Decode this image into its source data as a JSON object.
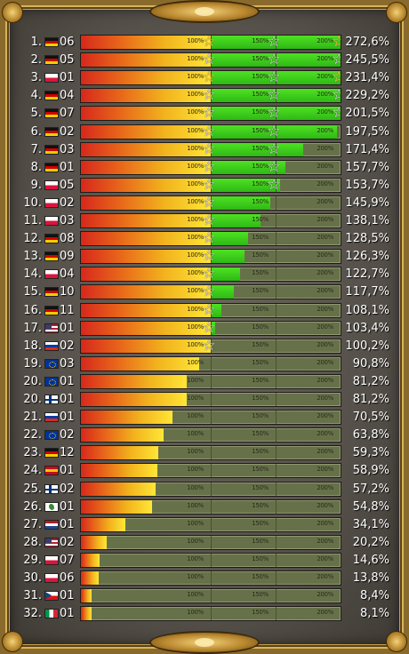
{
  "gauge_labels": [
    "100%",
    "150%",
    "200%"
  ],
  "rows": [
    {
      "rank": "1.",
      "flag": "germany",
      "code": "06",
      "value": 272.6,
      "pct": "272,6%",
      "star_gold": true
    },
    {
      "rank": "2.",
      "flag": "germany",
      "code": "05",
      "value": 245.5,
      "pct": "245,5%",
      "star_gold": false
    },
    {
      "rank": "3.",
      "flag": "poland",
      "code": "01",
      "value": 231.4,
      "pct": "231,4%",
      "star_gold": true
    },
    {
      "rank": "4.",
      "flag": "germany",
      "code": "04",
      "value": 229.2,
      "pct": "229,2%",
      "star_gold": false
    },
    {
      "rank": "5.",
      "flag": "germany",
      "code": "07",
      "value": 201.5,
      "pct": "201,5%",
      "star_gold": false
    },
    {
      "rank": "6.",
      "flag": "germany",
      "code": "02",
      "value": 197.5,
      "pct": "197,5%",
      "star_gold": false
    },
    {
      "rank": "7.",
      "flag": "germany",
      "code": "03",
      "value": 171.4,
      "pct": "171,4%",
      "star_gold": false
    },
    {
      "rank": "8.",
      "flag": "germany",
      "code": "01",
      "value": 157.7,
      "pct": "157,7%",
      "star_gold": false
    },
    {
      "rank": "9.",
      "flag": "poland",
      "code": "05",
      "value": 153.7,
      "pct": "153,7%",
      "star_gold": false
    },
    {
      "rank": "10.",
      "flag": "poland",
      "code": "02",
      "value": 145.9,
      "pct": "145,9%",
      "star_gold": false
    },
    {
      "rank": "11.",
      "flag": "poland",
      "code": "03",
      "value": 138.1,
      "pct": "138,1%",
      "star_gold": false
    },
    {
      "rank": "12.",
      "flag": "germany",
      "code": "08",
      "value": 128.5,
      "pct": "128,5%",
      "star_gold": false
    },
    {
      "rank": "13.",
      "flag": "germany",
      "code": "09",
      "value": 126.3,
      "pct": "126,3%",
      "star_gold": false
    },
    {
      "rank": "14.",
      "flag": "poland",
      "code": "04",
      "value": 122.7,
      "pct": "122,7%",
      "star_gold": false
    },
    {
      "rank": "15.",
      "flag": "germany",
      "code": "10",
      "value": 117.7,
      "pct": "117,7%",
      "star_gold": false
    },
    {
      "rank": "16.",
      "flag": "germany",
      "code": "11",
      "value": 108.1,
      "pct": "108,1%",
      "star_gold": false
    },
    {
      "rank": "17.",
      "flag": "usa",
      "code": "01",
      "value": 103.4,
      "pct": "103,4%",
      "star_gold": false
    },
    {
      "rank": "18.",
      "flag": "russia",
      "code": "02",
      "value": 100.2,
      "pct": "100,2%",
      "star_gold": false
    },
    {
      "rank": "19.",
      "flag": "eu",
      "code": "03",
      "value": 90.8,
      "pct": "90,8%",
      "star_gold": false
    },
    {
      "rank": "20.",
      "flag": "eu",
      "code": "01",
      "value": 81.2,
      "pct": "81,2%",
      "star_gold": false
    },
    {
      "rank": "20.",
      "flag": "finland",
      "code": "01",
      "value": 81.2,
      "pct": "81,2%",
      "star_gold": false
    },
    {
      "rank": "21.",
      "flag": "russia",
      "code": "01",
      "value": 70.5,
      "pct": "70,5%",
      "star_gold": false
    },
    {
      "rank": "22.",
      "flag": "eu",
      "code": "02",
      "value": 63.8,
      "pct": "63,8%",
      "star_gold": false
    },
    {
      "rank": "23.",
      "flag": "germany",
      "code": "12",
      "value": 59.3,
      "pct": "59,3%",
      "star_gold": false
    },
    {
      "rank": "24.",
      "flag": "spain",
      "code": "01",
      "value": 58.9,
      "pct": "58,9%",
      "star_gold": false
    },
    {
      "rank": "25.",
      "flag": "finland",
      "code": "02",
      "value": 57.2,
      "pct": "57,2%",
      "star_gold": false
    },
    {
      "rank": "26.",
      "flag": "other",
      "code": "01",
      "value": 54.8,
      "pct": "54,8%",
      "star_gold": false
    },
    {
      "rank": "27.",
      "flag": "netherlands",
      "code": "01",
      "value": 34.1,
      "pct": "34,1%",
      "star_gold": false
    },
    {
      "rank": "28.",
      "flag": "usa",
      "code": "02",
      "value": 20.2,
      "pct": "20,2%",
      "star_gold": false
    },
    {
      "rank": "29.",
      "flag": "poland",
      "code": "07",
      "value": 14.6,
      "pct": "14,6%",
      "star_gold": false
    },
    {
      "rank": "30.",
      "flag": "poland",
      "code": "06",
      "value": 13.8,
      "pct": "13,8%",
      "star_gold": false
    },
    {
      "rank": "31.",
      "flag": "czech",
      "code": "01",
      "value": 8.4,
      "pct": "8,4%",
      "star_gold": false
    },
    {
      "rank": "32.",
      "flag": "italy",
      "code": "01",
      "value": 8.1,
      "pct": "8,1%",
      "star_gold": false
    }
  ],
  "flag_colors": {
    "germany": [
      "#111111",
      "#d00000",
      "#ffce00"
    ],
    "poland": [
      "#ffffff",
      "#dc143c"
    ],
    "russia": [
      "#ffffff",
      "#0039a6",
      "#d52b1e"
    ],
    "netherlands": [
      "#ae1c28",
      "#ffffff",
      "#21468b"
    ],
    "spain": [
      "#c60b1e",
      "#ffc400",
      "#c60b1e"
    ],
    "eu": [
      "#003399"
    ],
    "usa": [
      "#b22234",
      "#ffffff",
      "#b22234",
      "#ffffff",
      "#3c3b6e"
    ],
    "finland": [
      "#ffffff",
      "#003580",
      "#ffffff"
    ],
    "czech": [
      "#ffffff",
      "#d7141a"
    ],
    "italy": [
      "#009246",
      "#ffffff",
      "#ce2b37"
    ],
    "other": [
      "#ffffff",
      "#3a8a3a"
    ]
  }
}
